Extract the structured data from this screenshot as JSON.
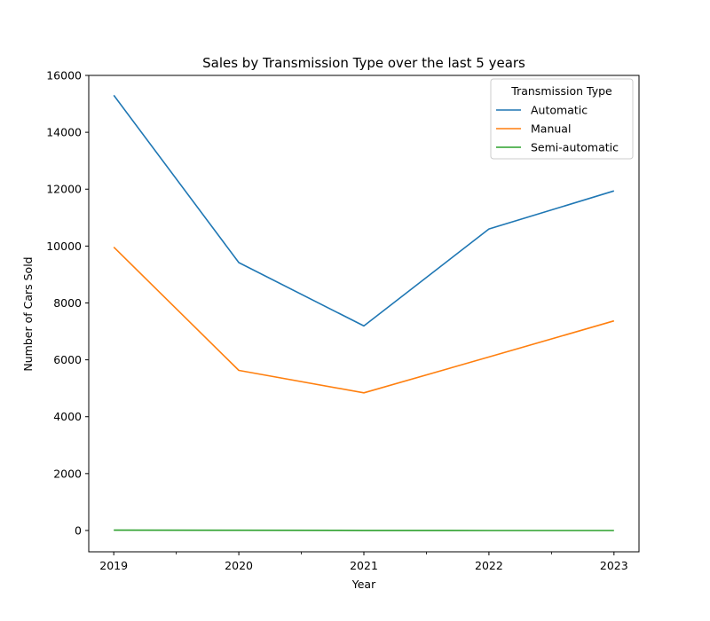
{
  "chart_data": {
    "type": "line",
    "title": "Sales by Transmission Type over the last 5 years",
    "xlabel": "Year",
    "ylabel": "Number of Cars Sold",
    "x": [
      2019,
      2020,
      2021,
      2022,
      2023
    ],
    "x_ticks": [
      "2019",
      "2020",
      "2021",
      "2022",
      "2023"
    ],
    "xlim": [
      2018.8,
      2023.2
    ],
    "ylim": [
      -750,
      16000
    ],
    "y_ticks": [
      0,
      2000,
      4000,
      6000,
      8000,
      10000,
      12000,
      14000,
      16000
    ],
    "grid": false,
    "legend": {
      "title": "Transmission Type",
      "placement": "top-right"
    },
    "series": [
      {
        "name": "Automatic",
        "color": "#1f77b4",
        "values": [
          15300,
          9420,
          7190,
          10600,
          11940
        ]
      },
      {
        "name": "Manual",
        "color": "#ff7f0e",
        "values": [
          9960,
          5630,
          4840,
          6100,
          7370
        ]
      },
      {
        "name": "Semi-automatic",
        "color": "#2ca02c",
        "values": [
          10,
          8,
          2,
          0,
          0
        ]
      }
    ]
  }
}
